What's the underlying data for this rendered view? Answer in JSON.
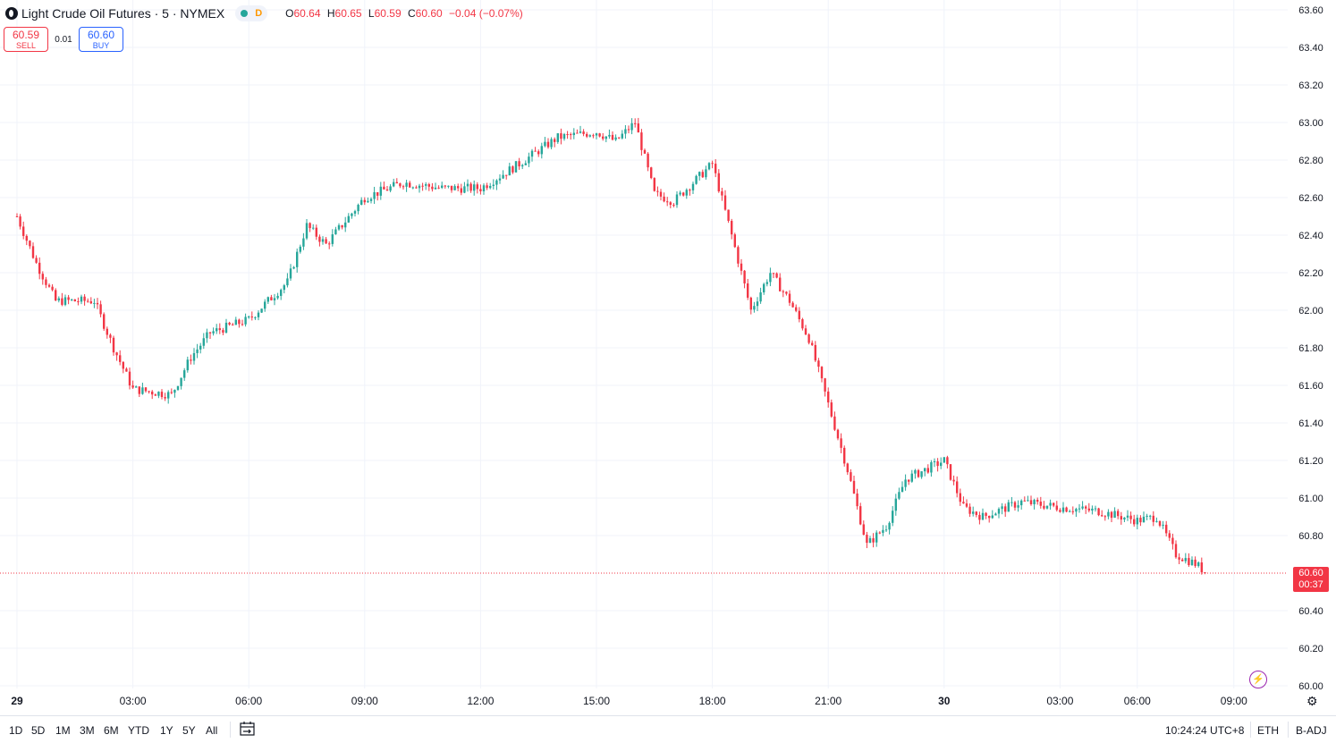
{
  "header": {
    "symbol_title": "Light Crude Oil Futures · 5 · NYMEX",
    "status_badge": "D",
    "ohlc": {
      "o_label": "O",
      "o": "60.64",
      "h_label": "H",
      "h": "60.65",
      "l_label": "L",
      "l": "60.59",
      "c_label": "C",
      "c": "60.60",
      "change": "−0.04 (−0.07%)"
    }
  },
  "trade": {
    "sell_price": "60.59",
    "sell_label": "SELL",
    "spread": "0.01",
    "buy_price": "60.60",
    "buy_label": "BUY"
  },
  "price_tag": {
    "price": "60.60",
    "countdown": "00:37"
  },
  "colors": {
    "up": "#26a69a",
    "down": "#f23645",
    "grid": "#f0f3fa",
    "accent": "#2962ff"
  },
  "chart_data": {
    "type": "candlestick",
    "interval": "5 minutes",
    "y_ticks": [
      "63.60",
      "63.40",
      "63.20",
      "63.00",
      "62.80",
      "62.60",
      "62.40",
      "62.20",
      "62.00",
      "61.80",
      "61.60",
      "61.40",
      "61.20",
      "61.00",
      "60.80",
      "60.40",
      "60.20",
      "60.00"
    ],
    "x_ticks": [
      "29",
      "03:00",
      "06:00",
      "09:00",
      "12:00",
      "15:00",
      "18:00",
      "21:00",
      "30",
      "03:00",
      "06:00",
      "09:00"
    ],
    "ylim": [
      60.0,
      63.6
    ],
    "last_price": 60.6,
    "anchors": [
      [
        0.0,
        62.5
      ],
      [
        0.5,
        62.25
      ],
      [
        1.0,
        62.05
      ],
      [
        2.0,
        62.05
      ],
      [
        2.5,
        61.8
      ],
      [
        3.0,
        61.58
      ],
      [
        4.0,
        61.55
      ],
      [
        4.5,
        61.75
      ],
      [
        5.0,
        61.88
      ],
      [
        6.0,
        61.95
      ],
      [
        7.0,
        62.15
      ],
      [
        7.5,
        62.45
      ],
      [
        8.0,
        62.35
      ],
      [
        9.0,
        62.6
      ],
      [
        10.0,
        62.68
      ],
      [
        11.0,
        62.65
      ],
      [
        12.0,
        62.65
      ],
      [
        13.0,
        62.78
      ],
      [
        14.0,
        62.92
      ],
      [
        15.0,
        62.95
      ],
      [
        15.5,
        62.9
      ],
      [
        16.0,
        63.0
      ],
      [
        16.5,
        62.62
      ],
      [
        17.0,
        62.58
      ],
      [
        18.0,
        62.78
      ],
      [
        18.5,
        62.4
      ],
      [
        19.0,
        62.0
      ],
      [
        19.5,
        62.2
      ],
      [
        20.0,
        62.05
      ],
      [
        20.5,
        61.85
      ],
      [
        21.0,
        61.5
      ],
      [
        21.5,
        61.15
      ],
      [
        22.0,
        60.75
      ],
      [
        22.5,
        60.85
      ],
      [
        23.0,
        61.1
      ],
      [
        24.0,
        61.2
      ],
      [
        24.5,
        60.95
      ],
      [
        25.0,
        60.9
      ],
      [
        26.0,
        60.98
      ],
      [
        27.0,
        60.95
      ],
      [
        28.0,
        60.93
      ],
      [
        29.0,
        60.88
      ],
      [
        29.5,
        60.9
      ],
      [
        30.0,
        60.7
      ],
      [
        30.5,
        60.65
      ],
      [
        30.8,
        60.6
      ]
    ]
  },
  "bottom": {
    "ranges": [
      "1D",
      "5D",
      "1M",
      "3M",
      "6M",
      "YTD",
      "1Y",
      "5Y",
      "All"
    ],
    "clock": "10:24:24 UTC+8",
    "session": "ETH",
    "adjust": "B-ADJ"
  }
}
